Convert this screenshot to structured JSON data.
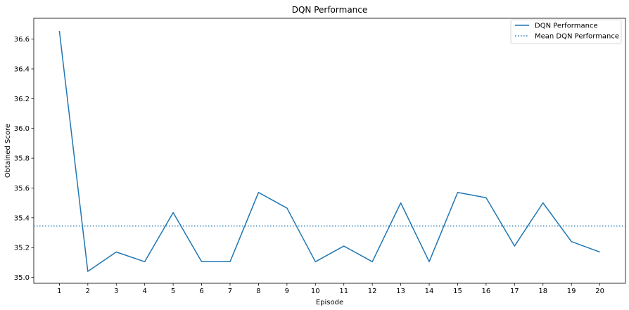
{
  "chart_data": {
    "type": "line",
    "title": "DQN Performance",
    "xlabel": "Episode",
    "ylabel": "Obtained Score",
    "x": [
      1,
      2,
      3,
      4,
      5,
      6,
      7,
      8,
      9,
      10,
      11,
      12,
      13,
      14,
      15,
      16,
      17,
      18,
      19,
      20
    ],
    "series": [
      {
        "name": "DQN Performance",
        "style": "solid",
        "color": "#1f77b4",
        "values": [
          36.655,
          35.04,
          35.17,
          35.105,
          35.435,
          35.105,
          35.105,
          35.57,
          35.465,
          35.105,
          35.21,
          35.105,
          35.5,
          35.105,
          35.57,
          35.535,
          35.21,
          35.5,
          35.24,
          35.17
        ]
      }
    ],
    "reference_lines": [
      {
        "name": "Mean DQN Performance",
        "style": "dotted",
        "color": "#1f77b4",
        "y": 35.345
      }
    ],
    "xlim": [
      0.1,
      20.9
    ],
    "ylim": [
      34.96,
      36.74
    ],
    "xticks": [
      "1",
      "2",
      "3",
      "4",
      "5",
      "6",
      "7",
      "8",
      "9",
      "10",
      "11",
      "12",
      "13",
      "14",
      "15",
      "16",
      "17",
      "18",
      "19",
      "20"
    ],
    "yticks": [
      "35.0",
      "35.2",
      "35.4",
      "35.6",
      "35.8",
      "36.0",
      "36.2",
      "36.4",
      "36.6"
    ],
    "ytick_values": [
      35.0,
      35.2,
      35.4,
      35.6,
      35.8,
      36.0,
      36.2,
      36.4,
      36.6
    ],
    "grid": false,
    "legend_position": "top-right"
  }
}
